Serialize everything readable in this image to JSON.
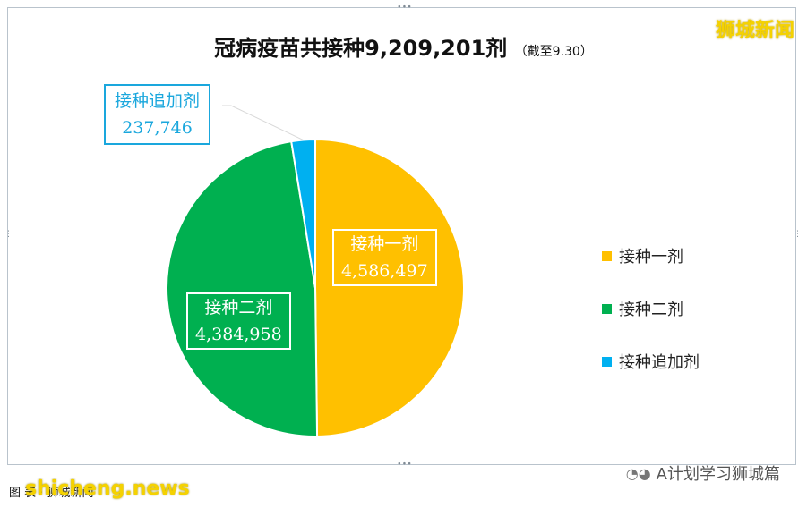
{
  "brand": "狮城新闻",
  "title_main": "冠病疫苗共接种9,209,201剂",
  "title_note": "（截至9.30）",
  "chart_data": {
    "type": "pie",
    "title": "冠病疫苗共接种9,209,201剂",
    "subtitle": "（截至9.30）",
    "categories": [
      "接种一剂",
      "接种二剂",
      "接种追加剂"
    ],
    "values": [
      4586497,
      4384958,
      237746
    ],
    "value_labels": [
      "4,586,497",
      "4,384,958",
      "237,746"
    ],
    "colors": [
      "#ffc000",
      "#00b050",
      "#00b0f0"
    ],
    "legend_position": "right"
  },
  "source_text": "图 表 · 狮城新闻",
  "watermark": "shicheng.news",
  "account": "A计划学习狮城篇",
  "account_icon": "wechat-icon"
}
